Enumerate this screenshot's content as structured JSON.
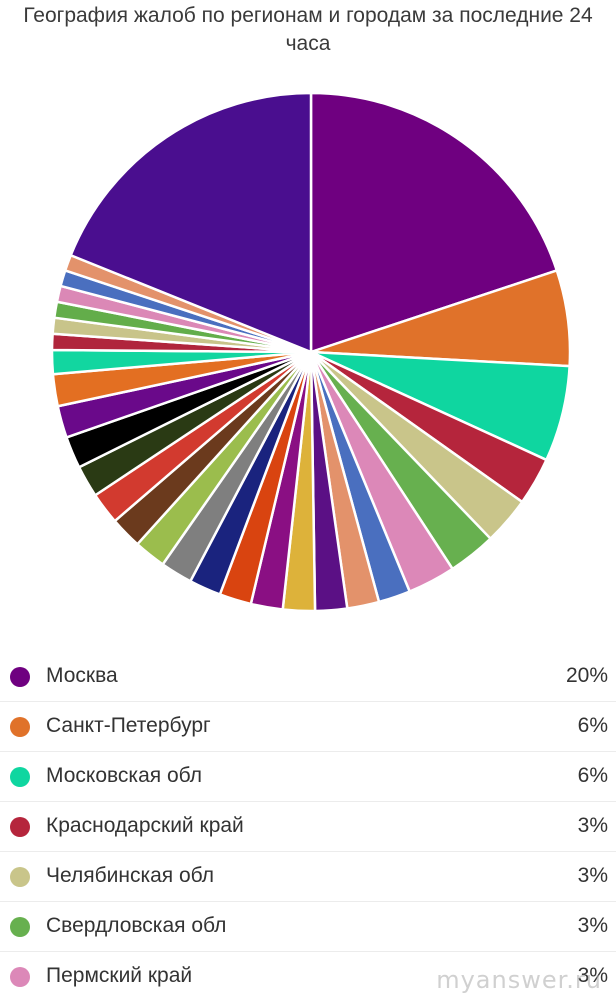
{
  "header": {
    "title": "География жалоб по регионам и городам за последние 24 часа"
  },
  "chart_data": {
    "type": "pie",
    "title": "География жалоб по регионам и городам за последние 24 часа",
    "slices": [
      {
        "label": "Москва",
        "value": 20,
        "color": "#6f0080"
      },
      {
        "label": "Санкт-Петербург",
        "value": 6,
        "color": "#e0722a"
      },
      {
        "label": "Московская обл",
        "value": 6,
        "color": "#0fd6a0"
      },
      {
        "label": "Краснодарский край",
        "value": 3,
        "color": "#b5253c"
      },
      {
        "label": "Челябинская обл",
        "value": 3,
        "color": "#c9c58a"
      },
      {
        "label": "Свердловская обл",
        "value": 3,
        "color": "#67b04f"
      },
      {
        "label": "Пермский край",
        "value": 3,
        "color": "#dc88b8"
      },
      {
        "label": "",
        "value": 2,
        "color": "#4a6fbf"
      },
      {
        "label": "",
        "value": 2,
        "color": "#e3926b"
      },
      {
        "label": "",
        "value": 2,
        "color": "#5b1085"
      },
      {
        "label": "",
        "value": 2,
        "color": "#ddb23a"
      },
      {
        "label": "",
        "value": 2,
        "color": "#8a0f83"
      },
      {
        "label": "",
        "value": 2,
        "color": "#d94410"
      },
      {
        "label": "",
        "value": 2,
        "color": "#1a237e"
      },
      {
        "label": "",
        "value": 2,
        "color": "#7f7f7f"
      },
      {
        "label": "",
        "value": 2,
        "color": "#9bbd4d"
      },
      {
        "label": "",
        "value": 2,
        "color": "#6b3a1d"
      },
      {
        "label": "",
        "value": 2,
        "color": "#d23a2f"
      },
      {
        "label": "",
        "value": 2,
        "color": "#2a3a14"
      },
      {
        "label": "",
        "value": 2,
        "color": "#000000"
      },
      {
        "label": "",
        "value": 2,
        "color": "#6a098a"
      },
      {
        "label": "",
        "value": 2,
        "color": "#e36f22"
      },
      {
        "label": "",
        "value": 1.5,
        "color": "#12d6a0"
      },
      {
        "label": "",
        "value": 1,
        "color": "#b0253c"
      },
      {
        "label": "",
        "value": 1,
        "color": "#c8c48a"
      },
      {
        "label": "",
        "value": 1,
        "color": "#63ad4a"
      },
      {
        "label": "",
        "value": 1,
        "color": "#db88b6"
      },
      {
        "label": "",
        "value": 1,
        "color": "#4a6fbf"
      },
      {
        "label": "",
        "value": 1,
        "color": "#e3926b"
      },
      {
        "label": "",
        "value": 19,
        "color": "#4a0e8f"
      }
    ]
  },
  "legend": [
    {
      "label": "Москва",
      "value": "20%",
      "color": "#6f0080"
    },
    {
      "label": "Санкт-Петербург",
      "value": "6%",
      "color": "#e0722a"
    },
    {
      "label": "Московская обл",
      "value": "6%",
      "color": "#0fd6a0"
    },
    {
      "label": "Краснодарский край",
      "value": "3%",
      "color": "#b5253c"
    },
    {
      "label": "Челябинская обл",
      "value": "3%",
      "color": "#c9c58a"
    },
    {
      "label": "Свердловская обл",
      "value": "3%",
      "color": "#67b04f"
    },
    {
      "label": "Пермский край",
      "value": "3%",
      "color": "#dc88b8"
    }
  ],
  "watermark": "myanswer.ru"
}
